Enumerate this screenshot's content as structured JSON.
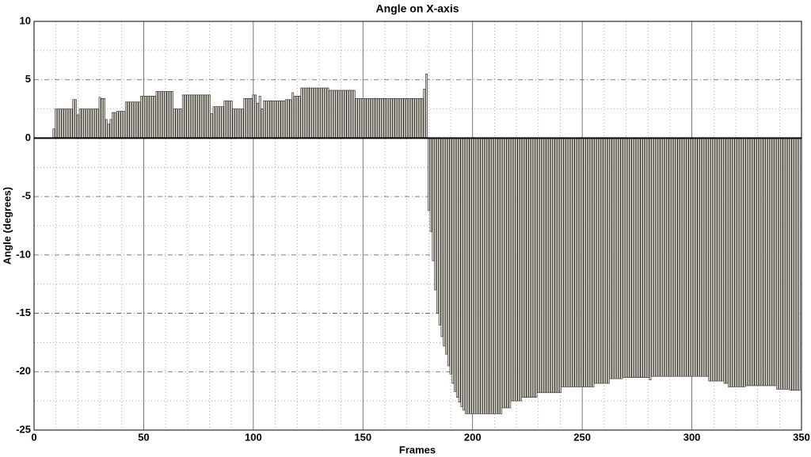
{
  "chart_data": {
    "type": "bar",
    "title": "Angle on X-axis",
    "x_label": "Frames",
    "y_label": "Angle (degrees)",
    "color": "#dcd9cc",
    "x": [
      9,
      10,
      11,
      12,
      13,
      14,
      15,
      16,
      17,
      18,
      19,
      20,
      21,
      22,
      23,
      24,
      25,
      26,
      27,
      28,
      29,
      30,
      31,
      32,
      33,
      34,
      35,
      36,
      37,
      38,
      39,
      40,
      41,
      42,
      43,
      44,
      45,
      46,
      47,
      48,
      49,
      50,
      51,
      52,
      53,
      54,
      55,
      56,
      57,
      58,
      59,
      60,
      61,
      62,
      63,
      64,
      65,
      66,
      67,
      68,
      69,
      70,
      71,
      72,
      73,
      74,
      75,
      76,
      77,
      78,
      79,
      80,
      81,
      82,
      83,
      84,
      85,
      86,
      87,
      88,
      89,
      90,
      91,
      92,
      93,
      94,
      95,
      96,
      97,
      98,
      99,
      100,
      101,
      102,
      103,
      104,
      105,
      106,
      107,
      108,
      109,
      110,
      111,
      112,
      113,
      114,
      115,
      116,
      117,
      118,
      119,
      120,
      121,
      122,
      123,
      124,
      125,
      126,
      127,
      128,
      129,
      130,
      131,
      132,
      133,
      134,
      135,
      136,
      137,
      138,
      139,
      140,
      141,
      142,
      143,
      144,
      145,
      146,
      147,
      148,
      149,
      150,
      151,
      152,
      153,
      154,
      155,
      156,
      157,
      158,
      159,
      160,
      161,
      162,
      163,
      164,
      165,
      166,
      167,
      168,
      169,
      170,
      171,
      172,
      173,
      174,
      175,
      176,
      177,
      178,
      179,
      180,
      181,
      182,
      183,
      184,
      185,
      186,
      187,
      188,
      189,
      190,
      191,
      192,
      193,
      194,
      195,
      196,
      197,
      198,
      199,
      200,
      201,
      202,
      203,
      204,
      205,
      206,
      207,
      208,
      209,
      210,
      211,
      212,
      213,
      214,
      215,
      216,
      217,
      218,
      219,
      220,
      221,
      222,
      223,
      224,
      225,
      226,
      227,
      228,
      229,
      230,
      231,
      232,
      233,
      234,
      235,
      236,
      237,
      238,
      239,
      240,
      241,
      242,
      243,
      244,
      245,
      246,
      247,
      248,
      249,
      250,
      251,
      252,
      253,
      254,
      255,
      256,
      257,
      258,
      259,
      260,
      261,
      262,
      263,
      264,
      265,
      266,
      267,
      268,
      269,
      270,
      271,
      272,
      273,
      274,
      275,
      276,
      277,
      278,
      279,
      280,
      281,
      282,
      283,
      284,
      285,
      286,
      287,
      288,
      289,
      290,
      291,
      292,
      293,
      294,
      295,
      296,
      297,
      298,
      299,
      300,
      301,
      302,
      303,
      304,
      305,
      306,
      307,
      308,
      309,
      310,
      311,
      312,
      313,
      314,
      315,
      316,
      317,
      318,
      319,
      320,
      321,
      322,
      323,
      324,
      325,
      326,
      327,
      328,
      329,
      330,
      331,
      332,
      333,
      334,
      335,
      336,
      337,
      338,
      339,
      340,
      341,
      342,
      343,
      344,
      345,
      346,
      347,
      348,
      349
    ],
    "values": [
      0.8,
      2.5,
      2.5,
      2.5,
      2.5,
      2.5,
      2.5,
      2.5,
      2.5,
      3.3,
      3.3,
      2,
      2.5,
      2.5,
      2.5,
      2.5,
      2.5,
      2.5,
      2.5,
      2.5,
      2.5,
      3.5,
      3.4,
      3.4,
      1.6,
      1.2,
      1.6,
      2.2,
      2.2,
      2.3,
      2.3,
      2.3,
      2.3,
      3.1,
      3.1,
      3.1,
      3.1,
      3.1,
      3.1,
      3.1,
      3.6,
      3.6,
      3.6,
      3.6,
      3.6,
      3.6,
      3.6,
      4,
      4,
      4,
      4,
      4,
      4,
      4,
      4,
      2.5,
      2.5,
      2.5,
      2.5,
      3.7,
      3.7,
      3.7,
      3.7,
      3.7,
      3.7,
      3.7,
      3.7,
      3.7,
      3.7,
      3.7,
      3.7,
      3.7,
      2.1,
      2.7,
      2.7,
      2.7,
      2.7,
      2.7,
      3.2,
      3.2,
      3.2,
      3.2,
      2.5,
      2.5,
      2.5,
      2.5,
      2.5,
      3.4,
      3.4,
      3.4,
      3.4,
      3.7,
      3.7,
      3,
      3.6,
      2.5,
      3.2,
      3.2,
      3.2,
      3.2,
      3.2,
      3.2,
      3.2,
      3.2,
      3.2,
      3.2,
      3.3,
      3.3,
      3.3,
      3.9,
      3.6,
      3.6,
      3.6,
      4.3,
      4.3,
      4.3,
      4.3,
      4.3,
      4.3,
      4.3,
      4.3,
      4.3,
      4.3,
      4.3,
      4.3,
      4.3,
      4.1,
      4.1,
      4.1,
      4.1,
      4.1,
      4.1,
      4.1,
      4.1,
      4.1,
      4.1,
      4.1,
      4.1,
      3.4,
      3.4,
      3.4,
      3.4,
      3.4,
      3.4,
      3.4,
      3.4,
      3.4,
      3.4,
      3.4,
      3.4,
      3.4,
      3.4,
      3.4,
      3.4,
      3.4,
      3.4,
      3.4,
      3.4,
      3.4,
      3.4,
      3.4,
      3.4,
      3.4,
      3.4,
      3.4,
      3.4,
      3.4,
      3.4,
      3.4,
      4.2,
      5.5,
      -6.2,
      -8,
      -10.5,
      -13,
      -15,
      -16,
      -17,
      -17.8,
      -18.5,
      -19.5,
      -20.2,
      -21,
      -21.7,
      -22.2,
      -22.6,
      -23,
      -23.3,
      -23.6,
      -23.6,
      -23.6,
      -23.6,
      -23.6,
      -23.6,
      -23.6,
      -23.6,
      -23.6,
      -23.6,
      -23.6,
      -23.6,
      -23.6,
      -23.6,
      -23.6,
      -23.6,
      -23.6,
      -23.1,
      -23.1,
      -23.1,
      -23.1,
      -22.5,
      -22.5,
      -22.5,
      -22.5,
      -22.5,
      -22.2,
      -22.2,
      -22.2,
      -22.2,
      -22.2,
      -22.2,
      -22.2,
      -21.8,
      -21.8,
      -21.8,
      -21.8,
      -21.8,
      -21.8,
      -21.8,
      -21.8,
      -21.8,
      -21.8,
      -21.8,
      -21.3,
      -21.3,
      -21.3,
      -21.3,
      -21.3,
      -21.3,
      -21.3,
      -21.3,
      -21.3,
      -21.3,
      -21.3,
      -21.3,
      -21.3,
      -21.3,
      -21.3,
      -21,
      -21,
      -21,
      -21,
      -21,
      -21,
      -21,
      -20.6,
      -20.6,
      -20.6,
      -20.6,
      -20.6,
      -20.6,
      -20.5,
      -20.5,
      -20.5,
      -20.5,
      -20.5,
      -20.5,
      -20.5,
      -20.5,
      -20.5,
      -20.5,
      -20.5,
      -20.5,
      -20.7,
      -20.4,
      -20.4,
      -20.4,
      -20.4,
      -20.4,
      -20.4,
      -20.4,
      -20.4,
      -20.4,
      -20.4,
      -20.4,
      -20.4,
      -20.4,
      -20.4,
      -20.4,
      -20.4,
      -20.4,
      -20.4,
      -20.4,
      -20.4,
      -20.4,
      -20.4,
      -20.4,
      -20.4,
      -20.4,
      -20.4,
      -20.8,
      -20.8,
      -20.8,
      -20.8,
      -20.8,
      -20.8,
      -20.8,
      -21,
      -21,
      -21.3,
      -21.3,
      -21.3,
      -21.3,
      -21.3,
      -21.3,
      -21.3,
      -21.3,
      -21.2,
      -21.2,
      -21.2,
      -21.2,
      -21.2,
      -21.2,
      -21.2,
      -21.2,
      -21.2,
      -21.2,
      -21.2,
      -21.2,
      -21.2,
      -21.2,
      -21.5,
      -21.5,
      -21.5,
      -21.5,
      -21.5,
      -21.5,
      -21.6,
      -21.6,
      -21.6,
      -21.6,
      -21.6
    ],
    "xlim": [
      0,
      350
    ],
    "xticks": [
      0,
      50,
      100,
      150,
      200,
      250,
      300,
      350
    ],
    "ylim": [
      -25,
      10
    ],
    "yticks": [
      -25,
      -20,
      -15,
      -10,
      -5,
      0,
      5,
      10
    ],
    "grid": true
  }
}
